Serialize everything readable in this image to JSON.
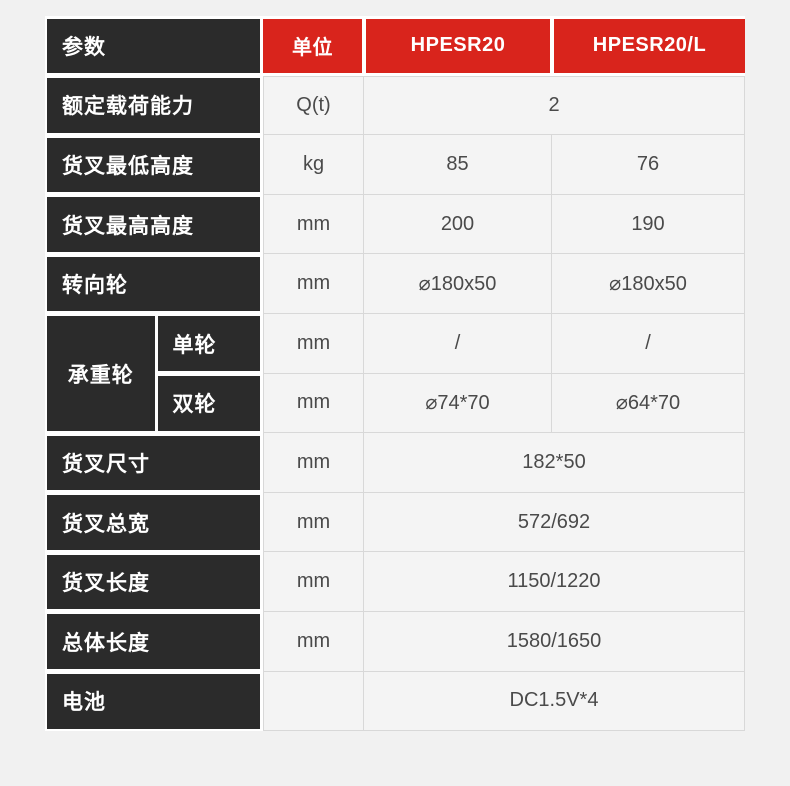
{
  "colors": {
    "page_background": "#f1f1f1",
    "label_tile_bg": "#2b2b2b",
    "header_bg": "#d9241c",
    "data_cell_bg": "#f4f4f4",
    "data_cell_border": "#d8d8d8",
    "data_text": "#4a4a4a",
    "tile_gap": "#ffffff"
  },
  "table": {
    "header": {
      "param": "参数",
      "unit": "单位",
      "model1": "HPESR20",
      "model2": "HPESR20/L"
    },
    "rows": [
      {
        "label": "额定载荷能力",
        "unit": "Q(t)",
        "merged": "2"
      },
      {
        "label": "货叉最低高度",
        "unit": "kg",
        "hpesr20": "85",
        "hpesr20l": "76"
      },
      {
        "label": "货叉最高高度",
        "unit": "mm",
        "hpesr20": "200",
        "hpesr20l": "190"
      },
      {
        "label": "转向轮",
        "unit": "mm",
        "hpesr20": "⌀180x50",
        "hpesr20l": "⌀180x50"
      },
      {
        "group": "承重轮",
        "sub": "单轮",
        "unit": "mm",
        "hpesr20": "/",
        "hpesr20l": "/"
      },
      {
        "sub": "双轮",
        "unit": "mm",
        "hpesr20": "⌀74*70",
        "hpesr20l": "⌀64*70"
      },
      {
        "label": "货叉尺寸",
        "unit": "mm",
        "merged": "182*50"
      },
      {
        "label": "货叉总宽",
        "unit": "mm",
        "merged": "572/692"
      },
      {
        "label": "货叉长度",
        "unit": "mm",
        "merged": "1150/1220"
      },
      {
        "label": "总体长度",
        "unit": "mm",
        "merged": "1580/1650"
      },
      {
        "label": "电池",
        "unit": "",
        "merged": "DC1.5V*4"
      }
    ]
  }
}
